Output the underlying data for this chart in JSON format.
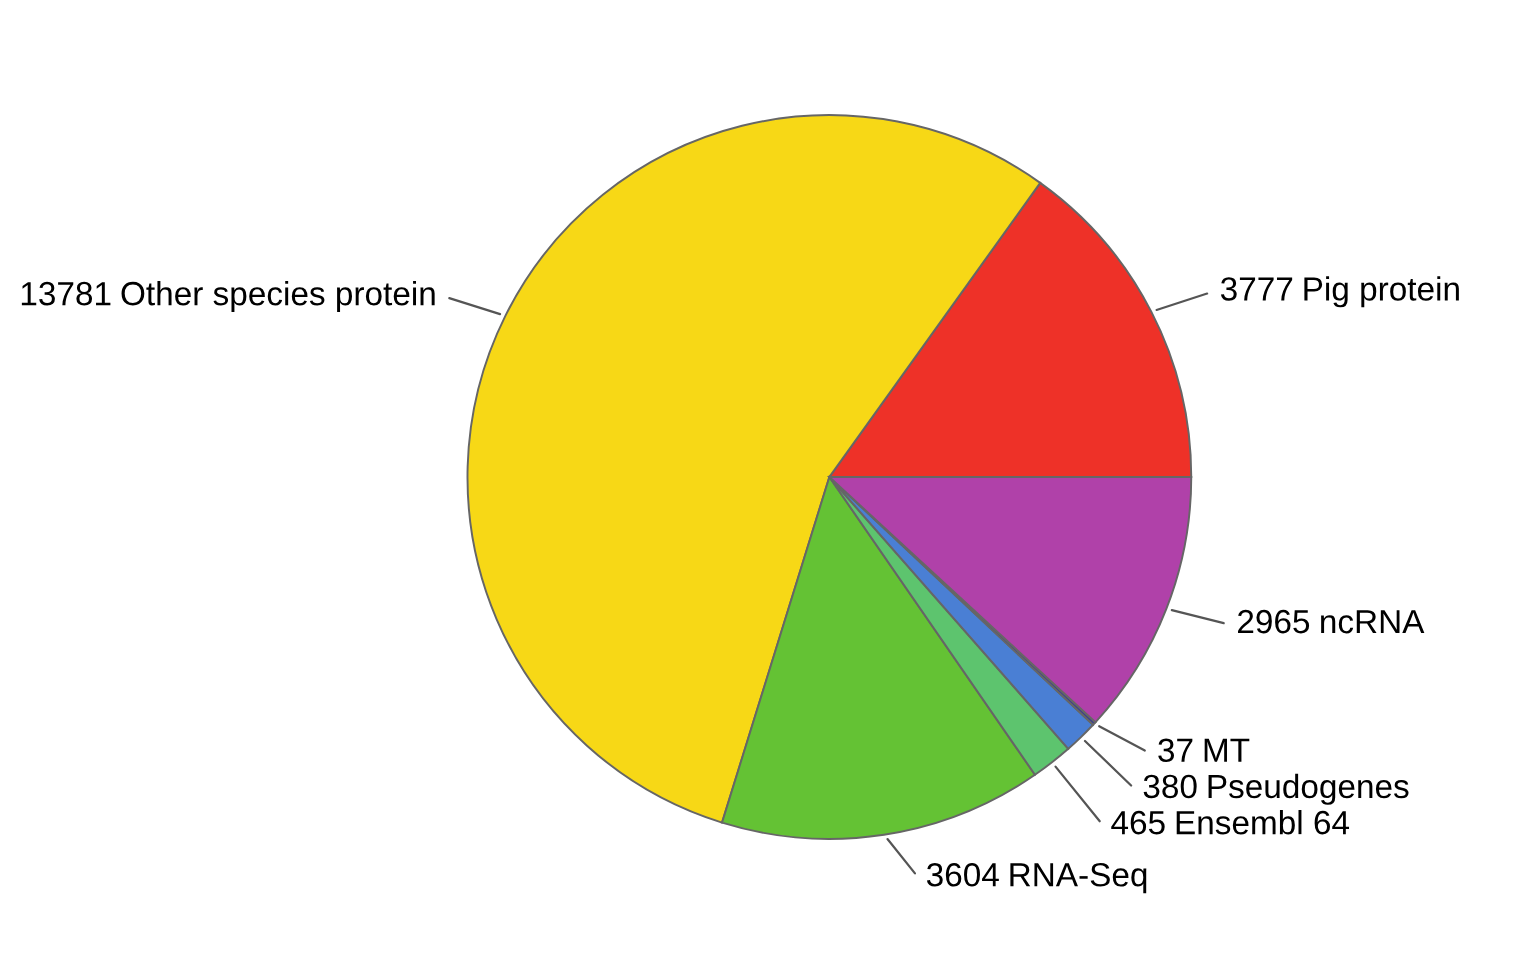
{
  "chart_data": {
    "type": "pie",
    "categories": [
      "Pig protein",
      "Other species protein",
      "RNA-Seq",
      "Ensembl 64",
      "Pseudogenes",
      "MT",
      "ncRNA"
    ],
    "values": [
      3777,
      13781,
      3604,
      465,
      380,
      37,
      2965
    ],
    "colors": [
      "#ee3128",
      "#f7d816",
      "#64c234",
      "#5dc46e",
      "#4a7fd4",
      "#3b3f8f",
      "#b041a9"
    ],
    "data_labels": true,
    "legend": false
  }
}
